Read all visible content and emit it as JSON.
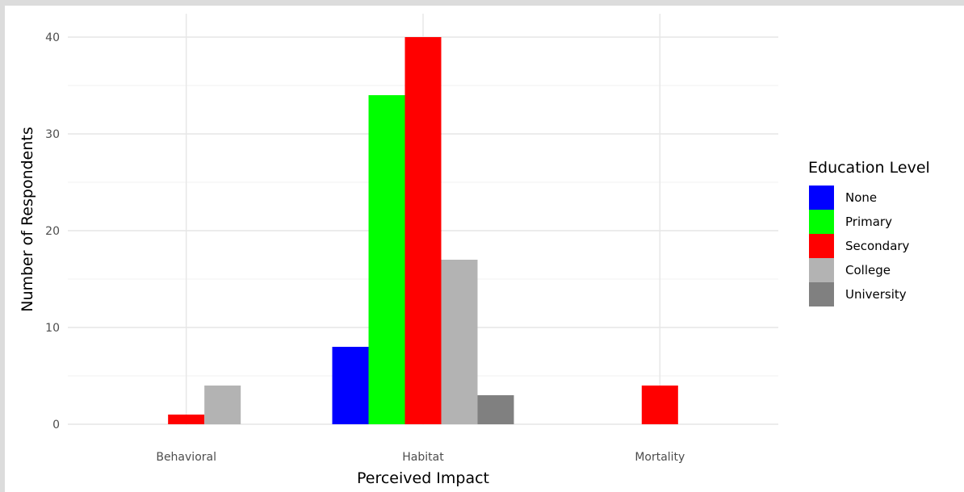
{
  "chart_data": {
    "type": "bar",
    "xlabel": "Perceived Impact",
    "ylabel": "Number of Respondents",
    "categories": [
      "Behavioral",
      "Habitat",
      "Mortality"
    ],
    "ylim": [
      0,
      42
    ],
    "yticks": [
      0,
      10,
      20,
      30,
      40
    ],
    "grid": true,
    "legend": {
      "title": "Education Level",
      "position": "right"
    },
    "series": [
      {
        "name": "None",
        "color": "#0000ff",
        "values": [
          0,
          8,
          0
        ]
      },
      {
        "name": "Primary",
        "color": "#00ff00",
        "values": [
          0,
          34,
          0
        ]
      },
      {
        "name": "Secondary",
        "color": "#ff0000",
        "values": [
          1,
          40,
          4
        ]
      },
      {
        "name": "College",
        "color": "#b3b3b3",
        "values": [
          4,
          17,
          0
        ]
      },
      {
        "name": "University",
        "color": "#808080",
        "values": [
          0,
          3,
          0
        ]
      }
    ]
  }
}
